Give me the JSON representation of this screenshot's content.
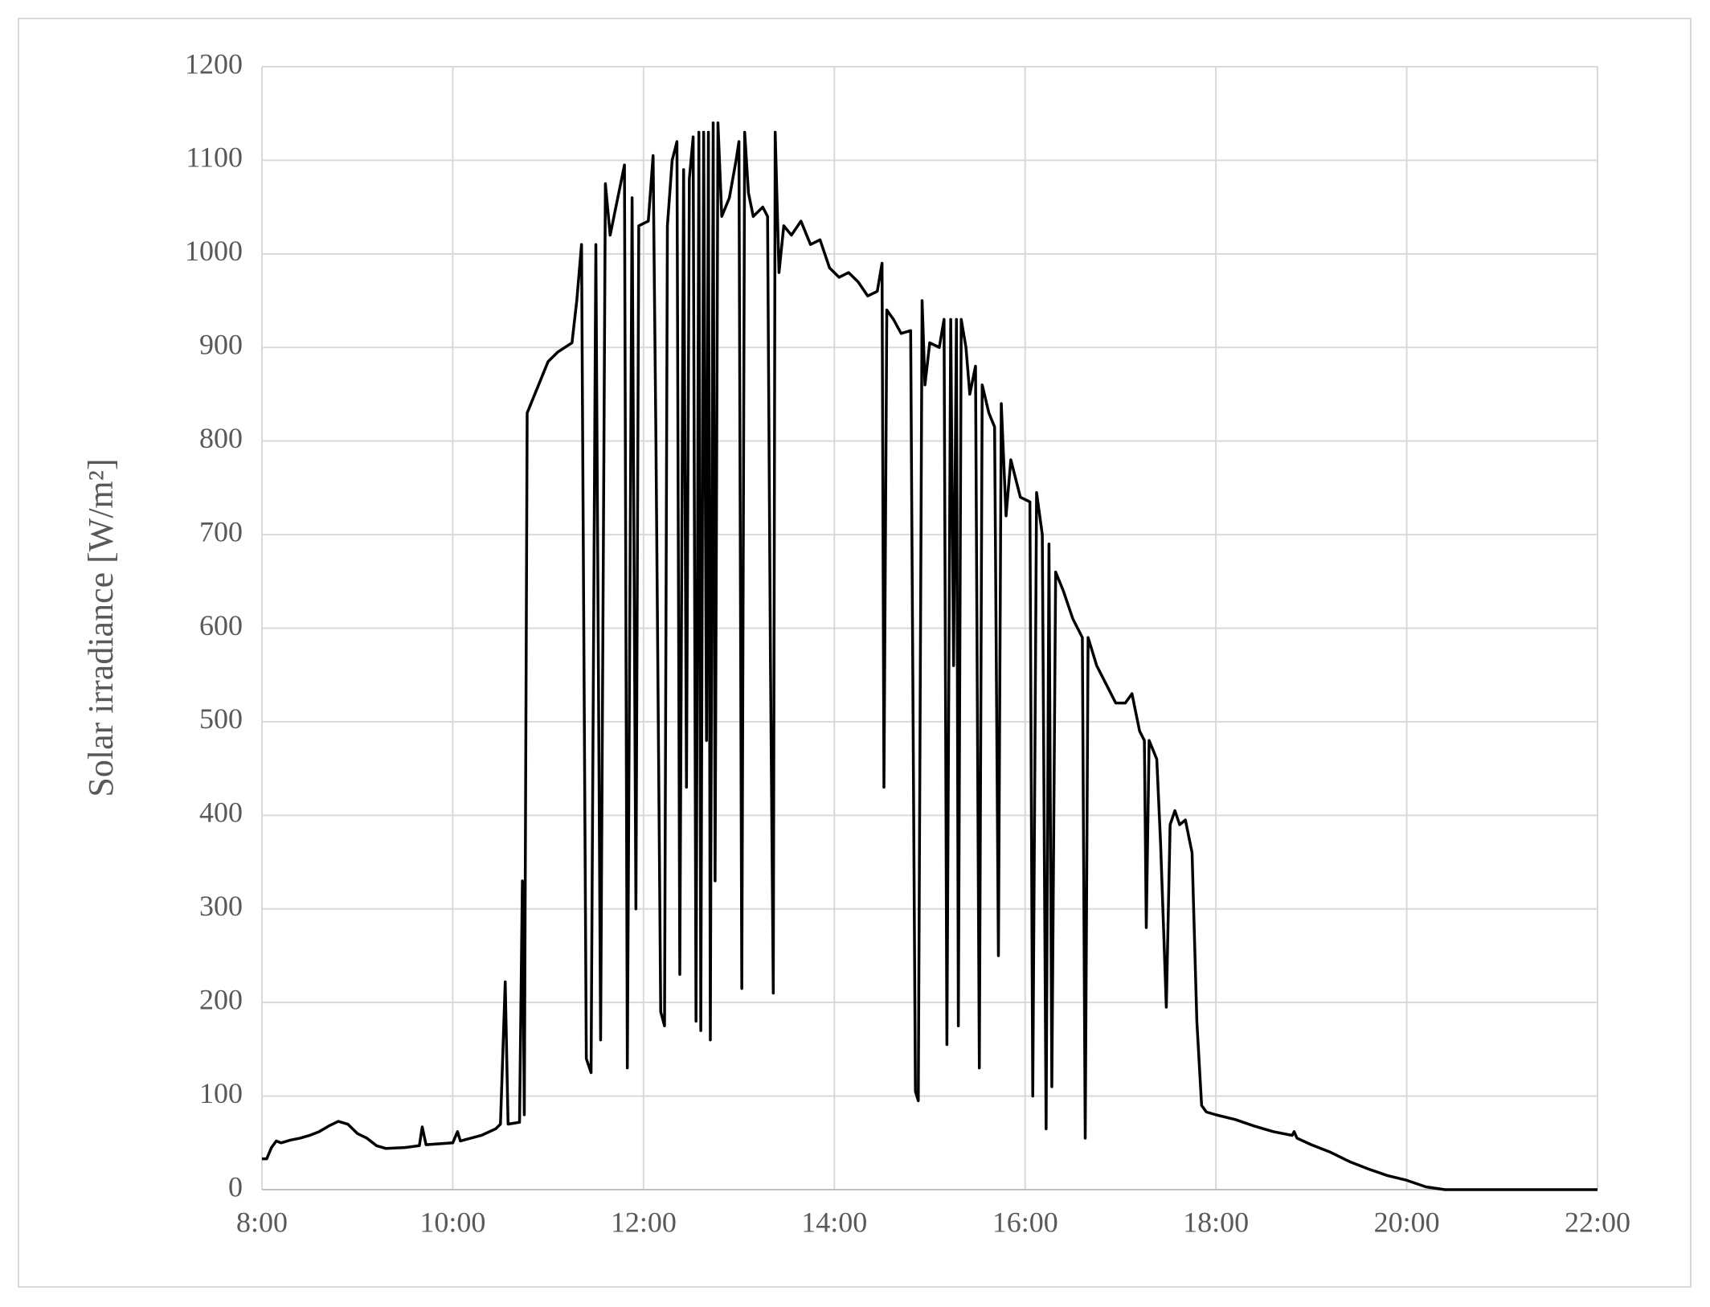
{
  "chart_data": {
    "type": "line",
    "y_label": "Solar irradiance [W/m²]",
    "x": [
      8.0,
      8.05,
      8.1,
      8.15,
      8.2,
      8.3,
      8.4,
      8.5,
      8.6,
      8.7,
      8.8,
      8.9,
      9.0,
      9.1,
      9.2,
      9.3,
      9.5,
      9.65,
      9.68,
      9.72,
      10.0,
      10.05,
      10.08,
      10.3,
      10.45,
      10.5,
      10.55,
      10.58,
      10.7,
      10.73,
      10.75,
      10.78,
      10.9,
      11.0,
      11.1,
      11.25,
      11.3,
      11.35,
      11.4,
      11.45,
      11.5,
      11.55,
      11.6,
      11.65,
      11.75,
      11.8,
      11.83,
      11.88,
      11.92,
      11.95,
      12.05,
      12.1,
      12.13,
      12.18,
      12.22,
      12.25,
      12.3,
      12.35,
      12.38,
      12.42,
      12.45,
      12.48,
      12.52,
      12.55,
      12.58,
      12.6,
      12.63,
      12.66,
      12.68,
      12.7,
      12.73,
      12.75,
      12.78,
      12.82,
      12.9,
      12.97,
      13.0,
      13.03,
      13.06,
      13.1,
      13.15,
      13.25,
      13.3,
      13.33,
      13.36,
      13.38,
      13.42,
      13.47,
      13.55,
      13.65,
      13.75,
      13.85,
      13.95,
      14.05,
      14.15,
      14.25,
      14.35,
      14.45,
      14.5,
      14.52,
      14.55,
      14.62,
      14.7,
      14.8,
      14.85,
      14.88,
      14.92,
      14.95,
      15.0,
      15.1,
      15.15,
      15.18,
      15.22,
      15.25,
      15.28,
      15.3,
      15.33,
      15.38,
      15.42,
      15.48,
      15.52,
      15.55,
      15.62,
      15.68,
      15.72,
      15.75,
      15.8,
      15.85,
      15.9,
      15.95,
      16.05,
      16.08,
      16.12,
      16.18,
      16.22,
      16.25,
      16.28,
      16.32,
      16.4,
      16.5,
      16.6,
      16.63,
      16.66,
      16.75,
      16.85,
      16.95,
      17.05,
      17.12,
      17.2,
      17.25,
      17.27,
      17.3,
      17.38,
      17.42,
      17.48,
      17.52,
      17.57,
      17.62,
      17.68,
      17.75,
      17.8,
      17.85,
      17.9,
      18.0,
      18.2,
      18.4,
      18.6,
      18.8,
      18.82,
      18.85,
      19.0,
      19.2,
      19.4,
      19.6,
      19.8,
      20.0,
      20.2,
      20.4,
      20.6,
      21.0,
      22.0
    ],
    "values": [
      33,
      33,
      45,
      52,
      50,
      53,
      55,
      58,
      62,
      68,
      73,
      70,
      60,
      55,
      47,
      44,
      45,
      47,
      67,
      48,
      50,
      62,
      52,
      58,
      65,
      70,
      222,
      70,
      72,
      330,
      80,
      830,
      860,
      885,
      895,
      905,
      950,
      1010,
      140,
      125,
      1010,
      160,
      1075,
      1020,
      1070,
      1095,
      130,
      1060,
      300,
      1030,
      1035,
      1105,
      800,
      190,
      175,
      1030,
      1100,
      1120,
      230,
      1090,
      430,
      1080,
      1125,
      180,
      1130,
      170,
      1130,
      480,
      1130,
      160,
      1140,
      330,
      1140,
      1040,
      1060,
      1100,
      1120,
      215,
      1130,
      1065,
      1040,
      1050,
      1040,
      570,
      210,
      1130,
      980,
      1030,
      1020,
      1035,
      1010,
      1015,
      985,
      975,
      980,
      970,
      955,
      960,
      990,
      430,
      940,
      930,
      915,
      918,
      105,
      95,
      950,
      860,
      905,
      900,
      930,
      155,
      930,
      560,
      930,
      175,
      930,
      900,
      850,
      880,
      130,
      860,
      830,
      815,
      250,
      840,
      720,
      780,
      760,
      740,
      735,
      100,
      745,
      700,
      65,
      690,
      110,
      660,
      640,
      610,
      590,
      55,
      590,
      560,
      540,
      520,
      520,
      530,
      490,
      480,
      280,
      480,
      460,
      370,
      195,
      390,
      405,
      390,
      395,
      360,
      180,
      90,
      83,
      80,
      75,
      68,
      62,
      58,
      62,
      55,
      48,
      40,
      30,
      22,
      15,
      10,
      3,
      0,
      0,
      0,
      0
    ],
    "color": "#000000",
    "xlim": [
      8,
      22
    ],
    "xticks": [
      {
        "value": 8,
        "label": "8:00"
      },
      {
        "value": 10,
        "label": "10:00"
      },
      {
        "value": 12,
        "label": "12:00"
      },
      {
        "value": 14,
        "label": "14:00"
      },
      {
        "value": 16,
        "label": "16:00"
      },
      {
        "value": 18,
        "label": "18:00"
      },
      {
        "value": 20,
        "label": "20:00"
      },
      {
        "value": 22,
        "label": "22:00"
      }
    ],
    "ylim": [
      0,
      1200
    ],
    "yticks": [
      0,
      100,
      200,
      300,
      400,
      500,
      600,
      700,
      800,
      900,
      1000,
      1100,
      1200
    ],
    "grid": true
  }
}
